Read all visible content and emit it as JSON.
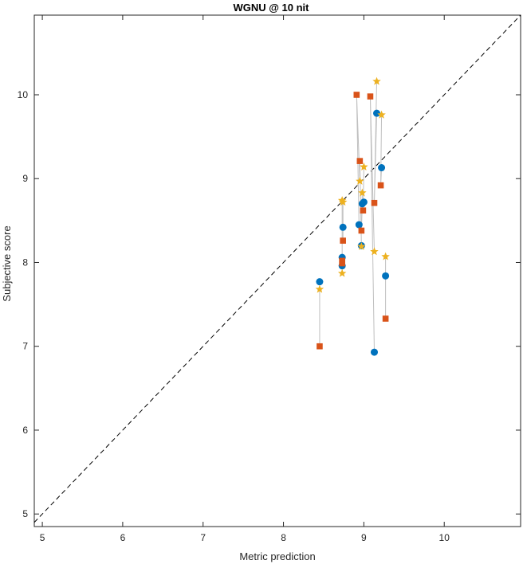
{
  "chart_data": {
    "type": "scatter",
    "title": "WGNU @ 10 nit",
    "xlabel": "Metric prediction",
    "ylabel": "Subjective score",
    "xlim": [
      4.9,
      10.95
    ],
    "ylim": [
      4.85,
      10.95
    ],
    "xticks": [
      "5",
      "6",
      "7",
      "8",
      "9",
      "10"
    ],
    "yticks": [
      "5",
      "6",
      "7",
      "8",
      "9",
      "10"
    ],
    "grid": false,
    "reference_line": "y = x",
    "series": [
      {
        "marker": "circle",
        "color": "#0072BD",
        "points": [
          [
            8.45,
            7.77
          ],
          [
            8.73,
            7.96
          ],
          [
            8.73,
            8.06
          ],
          [
            8.74,
            8.42
          ],
          [
            8.94,
            8.45
          ],
          [
            8.97,
            8.2
          ],
          [
            8.98,
            8.7
          ],
          [
            9.0,
            8.72
          ],
          [
            9.13,
            6.93
          ],
          [
            9.16,
            9.78
          ],
          [
            9.22,
            9.13
          ],
          [
            9.27,
            7.84
          ]
        ]
      },
      {
        "marker": "square",
        "color": "#D95319",
        "points": [
          [
            8.45,
            7.0
          ],
          [
            8.73,
            7.99
          ],
          [
            8.73,
            8.02
          ],
          [
            8.74,
            8.26
          ],
          [
            8.91,
            10.0
          ],
          [
            8.95,
            9.21
          ],
          [
            8.97,
            8.38
          ],
          [
            8.99,
            8.62
          ],
          [
            9.08,
            9.98
          ],
          [
            9.13,
            8.71
          ],
          [
            9.21,
            8.92
          ],
          [
            9.27,
            7.33
          ]
        ]
      },
      {
        "marker": "star",
        "color": "#EDB120",
        "points": [
          [
            8.45,
            7.68
          ],
          [
            8.73,
            7.87
          ],
          [
            8.73,
            8.74
          ],
          [
            8.74,
            8.72
          ],
          [
            8.95,
            8.97
          ],
          [
            8.97,
            8.19
          ],
          [
            8.98,
            8.83
          ],
          [
            9.0,
            9.14
          ],
          [
            9.13,
            8.13
          ],
          [
            9.16,
            10.16
          ],
          [
            9.22,
            9.76
          ],
          [
            9.27,
            8.07
          ]
        ]
      }
    ],
    "colors": {
      "connector": "#BFBFBF",
      "axes": "#262626",
      "reference": "#000000"
    }
  }
}
